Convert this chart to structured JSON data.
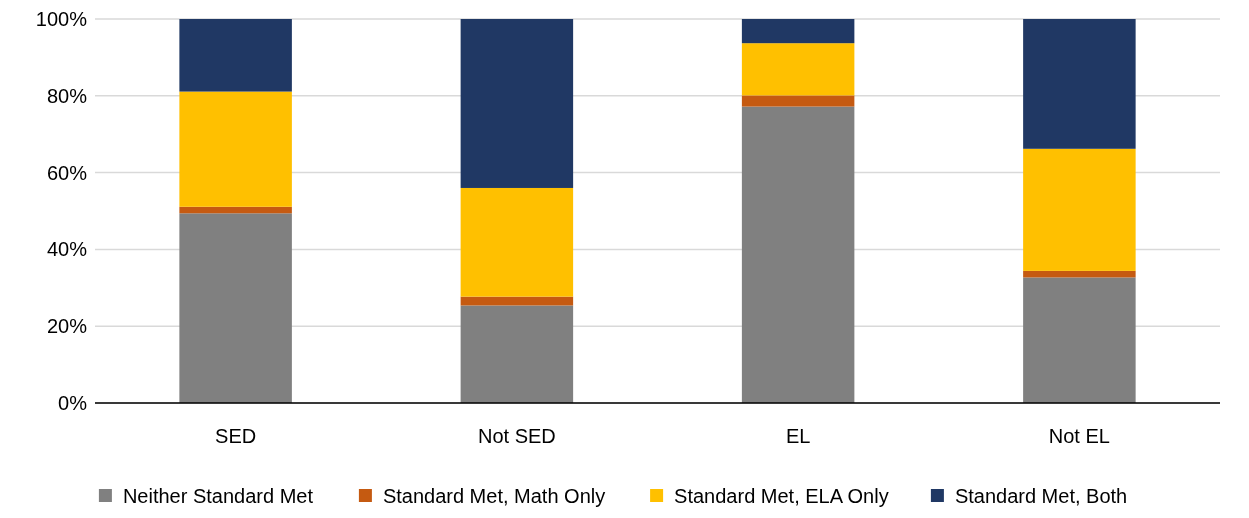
{
  "chart_data": {
    "type": "bar",
    "stacked": true,
    "categories": [
      "SED",
      "Not SED",
      "EL",
      "Not EL"
    ],
    "series": [
      {
        "name": "Neither Standard Met",
        "color": "#808080",
        "values": [
          49.4,
          25.4,
          77.2,
          32.7
        ]
      },
      {
        "name": "Standard Met, Math Only",
        "color": "#c55a11",
        "values": [
          1.7,
          2.3,
          2.9,
          1.7
        ]
      },
      {
        "name": "Standard Met, ELA Only",
        "color": "#ffc000",
        "values": [
          30.0,
          28.3,
          13.6,
          31.8
        ]
      },
      {
        "name": "Standard Met, Both",
        "color": "#203864",
        "values": [
          18.9,
          44.0,
          6.3,
          33.8
        ]
      }
    ],
    "ylim": [
      0,
      100
    ],
    "yticks": [
      {
        "value": 0,
        "label": "0%"
      },
      {
        "value": 20,
        "label": "20%"
      },
      {
        "value": 40,
        "label": "40%"
      },
      {
        "value": 60,
        "label": "60%"
      },
      {
        "value": 80,
        "label": "80%"
      },
      {
        "value": 100,
        "label": "100%"
      }
    ],
    "grid": "y",
    "legend": "bottom"
  }
}
